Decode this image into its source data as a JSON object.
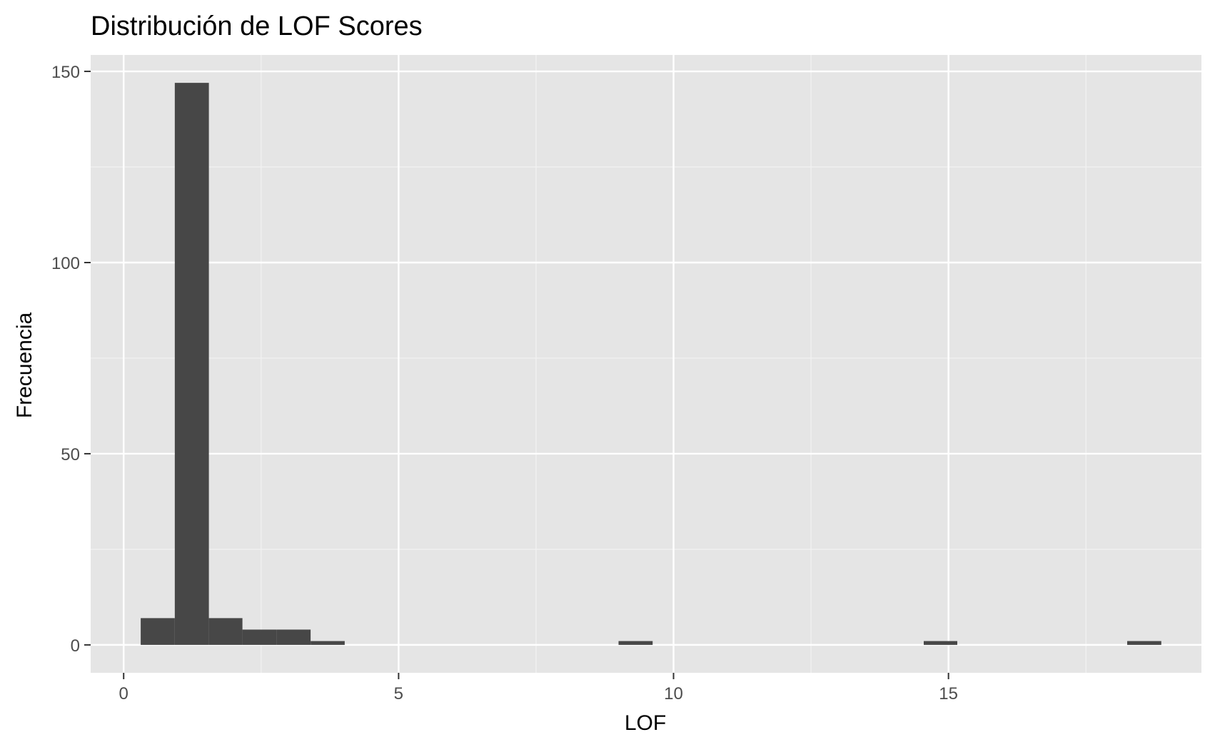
{
  "chart_data": {
    "type": "bar",
    "title": "Distribución de LOF Scores",
    "xlabel": "LOF",
    "ylabel": "Frecuencia",
    "xlim": [
      -0.6,
      19.6
    ],
    "ylim": [
      -7.3,
      154.3
    ],
    "x_ticks": [
      0,
      5,
      10,
      15
    ],
    "x_tick_labels": [
      "0",
      "5",
      "10",
      "15"
    ],
    "x_minor_ticks": [
      2.5,
      7.5,
      12.5,
      17.5
    ],
    "y_ticks": [
      0,
      50,
      100,
      150
    ],
    "y_tick_labels": [
      "0",
      "50",
      "100",
      "150"
    ],
    "y_minor_ticks": [
      25,
      75,
      125
    ],
    "bin_width": 0.617,
    "bins": [
      {
        "x_start": 0.31,
        "x_end": 0.93,
        "count": 7
      },
      {
        "x_start": 0.93,
        "x_end": 1.55,
        "count": 147
      },
      {
        "x_start": 1.55,
        "x_end": 2.16,
        "count": 7
      },
      {
        "x_start": 2.16,
        "x_end": 2.78,
        "count": 4
      },
      {
        "x_start": 2.78,
        "x_end": 3.4,
        "count": 4
      },
      {
        "x_start": 3.4,
        "x_end": 4.02,
        "count": 1
      },
      {
        "x_start": 9.0,
        "x_end": 9.62,
        "count": 1
      },
      {
        "x_start": 14.55,
        "x_end": 15.16,
        "count": 1
      },
      {
        "x_start": 18.25,
        "x_end": 18.87,
        "count": 1
      }
    ],
    "grid": true,
    "colors": {
      "panel_background": "#e5e5e5",
      "grid_major": "#ffffff",
      "grid_minor": "#f2f2f2",
      "bar_fill": "#474747",
      "tick": "#333333"
    }
  }
}
